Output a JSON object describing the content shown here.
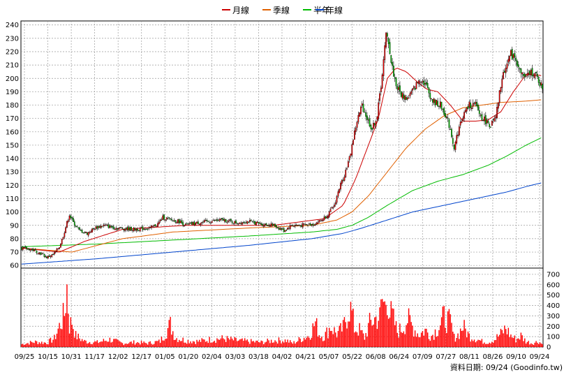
{
  "chart_data": {
    "type": "candlestick",
    "legend": [
      {
        "label": "月線",
        "color": "#cc0000"
      },
      {
        "label": "季線",
        "color": "#e06000"
      },
      {
        "label": "半年",
        "color": "#00bb00"
      },
      {
        "label": "年線",
        "color": "#0044cc"
      }
    ],
    "price_axis": {
      "ticks": [
        60,
        70,
        80,
        90,
        100,
        110,
        120,
        130,
        140,
        150,
        160,
        170,
        180,
        190,
        200,
        210,
        220,
        230,
        240
      ],
      "range": [
        58,
        243
      ]
    },
    "volume_axis": {
      "ticks": [
        0,
        100,
        200,
        300,
        400,
        500,
        600,
        700
      ],
      "range": [
        0,
        760
      ]
    },
    "x_tick_labels": [
      "09/25",
      "10/15",
      "10/31",
      "11/17",
      "12/02",
      "12/17",
      "01/05",
      "01/20",
      "02/04",
      "03/03",
      "03/18",
      "04/02",
      "04/21",
      "05/07",
      "05/22",
      "06/08",
      "06/24",
      "07/09",
      "07/27",
      "08/11",
      "08/26",
      "09/10",
      "09/24"
    ],
    "footer": "資料日期: 09/24  (Goodinfo.tw)",
    "colors": {
      "up": "#e60000",
      "down": "#00b000",
      "volume": "#ff0000",
      "grid": "#999999"
    },
    "price_anchors": [
      [
        0,
        73
      ],
      [
        8,
        72
      ],
      [
        15,
        69
      ],
      [
        20,
        66
      ],
      [
        25,
        68
      ],
      [
        30,
        74
      ],
      [
        33,
        82
      ],
      [
        36,
        92
      ],
      [
        38,
        98
      ],
      [
        41,
        92
      ],
      [
        46,
        86
      ],
      [
        52,
        84
      ],
      [
        58,
        88
      ],
      [
        65,
        90
      ],
      [
        75,
        88
      ],
      [
        90,
        87
      ],
      [
        102,
        88
      ],
      [
        108,
        91
      ],
      [
        112,
        96
      ],
      [
        118,
        94
      ],
      [
        125,
        93
      ],
      [
        130,
        90
      ],
      [
        140,
        92
      ],
      [
        150,
        93
      ],
      [
        160,
        94
      ],
      [
        170,
        92
      ],
      [
        180,
        93
      ],
      [
        190,
        91
      ],
      [
        200,
        90
      ],
      [
        208,
        86
      ],
      [
        214,
        90
      ],
      [
        222,
        90
      ],
      [
        232,
        91
      ],
      [
        238,
        94
      ],
      [
        243,
        98
      ],
      [
        248,
        105
      ],
      [
        252,
        118
      ],
      [
        256,
        128
      ],
      [
        260,
        140
      ],
      [
        263,
        155
      ],
      [
        266,
        168
      ],
      [
        270,
        180
      ],
      [
        274,
        170
      ],
      [
        278,
        162
      ],
      [
        282,
        172
      ],
      [
        285,
        195
      ],
      [
        287,
        213
      ],
      [
        289,
        232
      ],
      [
        291,
        228
      ],
      [
        293,
        212
      ],
      [
        297,
        195
      ],
      [
        301,
        188
      ],
      [
        306,
        185
      ],
      [
        311,
        192
      ],
      [
        316,
        200
      ],
      [
        320,
        196
      ],
      [
        326,
        183
      ],
      [
        332,
        180
      ],
      [
        336,
        173
      ],
      [
        340,
        162
      ],
      [
        343,
        148
      ],
      [
        346,
        160
      ],
      [
        350,
        172
      ],
      [
        355,
        180
      ],
      [
        360,
        180
      ],
      [
        364,
        172
      ],
      [
        368,
        168
      ],
      [
        372,
        165
      ],
      [
        376,
        170
      ],
      [
        380,
        195
      ],
      [
        384,
        210
      ],
      [
        388,
        218
      ],
      [
        392,
        215
      ],
      [
        395,
        205
      ],
      [
        400,
        200
      ],
      [
        404,
        205
      ],
      [
        407,
        203
      ],
      [
        410,
        198
      ],
      [
        413,
        193
      ]
    ],
    "ma_month": [
      [
        0,
        73
      ],
      [
        30,
        70
      ],
      [
        50,
        78
      ],
      [
        80,
        87
      ],
      [
        130,
        90
      ],
      [
        200,
        90
      ],
      [
        240,
        95
      ],
      [
        255,
        105
      ],
      [
        265,
        125
      ],
      [
        275,
        150
      ],
      [
        283,
        170
      ],
      [
        290,
        200
      ],
      [
        297,
        208
      ],
      [
        305,
        205
      ],
      [
        313,
        198
      ],
      [
        321,
        192
      ],
      [
        330,
        190
      ],
      [
        340,
        180
      ],
      [
        350,
        168
      ],
      [
        360,
        168
      ],
      [
        370,
        169
      ],
      [
        380,
        175
      ],
      [
        390,
        190
      ],
      [
        400,
        203
      ],
      [
        413,
        202
      ]
    ],
    "ma_quarter": [
      [
        0,
        73
      ],
      [
        40,
        70
      ],
      [
        80,
        80
      ],
      [
        120,
        85
      ],
      [
        180,
        88
      ],
      [
        230,
        90
      ],
      [
        250,
        94
      ],
      [
        262,
        100
      ],
      [
        275,
        112
      ],
      [
        290,
        130
      ],
      [
        305,
        148
      ],
      [
        320,
        162
      ],
      [
        335,
        172
      ],
      [
        350,
        178
      ],
      [
        365,
        180
      ],
      [
        380,
        182
      ],
      [
        400,
        183
      ],
      [
        413,
        184
      ]
    ],
    "ma_half": [
      [
        0,
        74
      ],
      [
        60,
        76
      ],
      [
        120,
        79
      ],
      [
        180,
        82
      ],
      [
        230,
        85
      ],
      [
        250,
        87
      ],
      [
        262,
        90
      ],
      [
        275,
        96
      ],
      [
        290,
        105
      ],
      [
        310,
        116
      ],
      [
        330,
        123
      ],
      [
        350,
        128
      ],
      [
        370,
        135
      ],
      [
        385,
        142
      ],
      [
        400,
        150
      ],
      [
        413,
        156
      ]
    ],
    "ma_year": [
      [
        0,
        61
      ],
      [
        60,
        65
      ],
      [
        120,
        70
      ],
      [
        180,
        75
      ],
      [
        230,
        80
      ],
      [
        255,
        84
      ],
      [
        270,
        88
      ],
      [
        290,
        94
      ],
      [
        310,
        100
      ],
      [
        330,
        104
      ],
      [
        350,
        108
      ],
      [
        370,
        112
      ],
      [
        385,
        115
      ],
      [
        400,
        119
      ],
      [
        413,
        122
      ]
    ],
    "volume_anchors": [
      [
        0,
        30
      ],
      [
        10,
        55
      ],
      [
        20,
        45
      ],
      [
        26,
        90
      ],
      [
        30,
        220
      ],
      [
        34,
        350
      ],
      [
        36,
        640
      ],
      [
        38,
        220
      ],
      [
        40,
        280
      ],
      [
        43,
        120
      ],
      [
        50,
        60
      ],
      [
        60,
        50
      ],
      [
        70,
        80
      ],
      [
        80,
        40
      ],
      [
        90,
        50
      ],
      [
        100,
        40
      ],
      [
        110,
        60
      ],
      [
        118,
        240
      ],
      [
        122,
        100
      ],
      [
        130,
        70
      ],
      [
        140,
        60
      ],
      [
        150,
        80
      ],
      [
        160,
        90
      ],
      [
        170,
        70
      ],
      [
        180,
        60
      ],
      [
        190,
        50
      ],
      [
        200,
        70
      ],
      [
        210,
        70
      ],
      [
        215,
        40
      ],
      [
        222,
        90
      ],
      [
        228,
        120
      ],
      [
        233,
        260
      ],
      [
        236,
        140
      ],
      [
        240,
        110
      ],
      [
        245,
        220
      ],
      [
        250,
        140
      ],
      [
        255,
        200
      ],
      [
        260,
        430
      ],
      [
        262,
        360
      ],
      [
        264,
        200
      ],
      [
        268,
        180
      ],
      [
        272,
        100
      ],
      [
        276,
        250
      ],
      [
        280,
        300
      ],
      [
        284,
        320
      ],
      [
        286,
        500
      ],
      [
        288,
        440
      ],
      [
        290,
        580
      ],
      [
        292,
        360
      ],
      [
        294,
        330
      ],
      [
        298,
        160
      ],
      [
        302,
        200
      ],
      [
        306,
        300
      ],
      [
        310,
        220
      ],
      [
        315,
        130
      ],
      [
        320,
        180
      ],
      [
        325,
        120
      ],
      [
        330,
        200
      ],
      [
        335,
        320
      ],
      [
        340,
        260
      ],
      [
        343,
        100
      ],
      [
        346,
        130
      ],
      [
        350,
        220
      ],
      [
        355,
        120
      ],
      [
        360,
        90
      ],
      [
        365,
        60
      ],
      [
        370,
        50
      ],
      [
        375,
        80
      ],
      [
        380,
        140
      ],
      [
        384,
        200
      ],
      [
        388,
        120
      ],
      [
        392,
        80
      ],
      [
        396,
        120
      ],
      [
        400,
        60
      ],
      [
        405,
        40
      ],
      [
        410,
        60
      ],
      [
        413,
        30
      ]
    ]
  }
}
